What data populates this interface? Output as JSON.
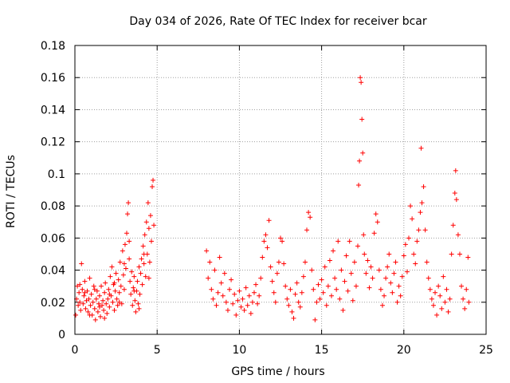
{
  "chart_data": {
    "type": "scatter",
    "title": "Day 034 of 2026, Rate Of TEC Index for receiver bcar",
    "xlabel": "GPS time / hours",
    "ylabel": "ROTI / TECUs",
    "xlim": [
      0,
      25
    ],
    "ylim": [
      0,
      0.18
    ],
    "xticks": [
      "0",
      "5",
      "10",
      "15",
      "20",
      "25"
    ],
    "yticks": [
      "0",
      "0.02",
      "0.04",
      "0.06",
      "0.08",
      "0.1",
      "0.12",
      "0.14",
      "0.16",
      "0.18"
    ],
    "grid": true,
    "marker": "+",
    "color": "#ff0000",
    "points": [
      [
        0.05,
        0.012
      ],
      [
        0.1,
        0.022
      ],
      [
        0.15,
        0.03
      ],
      [
        0.2,
        0.018
      ],
      [
        0.25,
        0.026
      ],
      [
        0.3,
        0.031
      ],
      [
        0.35,
        0.015
      ],
      [
        0.4,
        0.044
      ],
      [
        0.45,
        0.028
      ],
      [
        0.5,
        0.019
      ],
      [
        0.55,
        0.024
      ],
      [
        0.6,
        0.033
      ],
      [
        0.65,
        0.016
      ],
      [
        0.7,
        0.021
      ],
      [
        0.75,
        0.027
      ],
      [
        0.8,
        0.014
      ],
      [
        0.85,
        0.022
      ],
      [
        0.9,
        0.035
      ],
      [
        0.95,
        0.018
      ],
      [
        1.0,
        0.025
      ],
      [
        1.05,
        0.012
      ],
      [
        1.1,
        0.02
      ],
      [
        1.15,
        0.03
      ],
      [
        1.2,
        0.016
      ],
      [
        1.25,
        0.009
      ],
      [
        1.3,
        0.022
      ],
      [
        1.35,
        0.027
      ],
      [
        1.4,
        0.014
      ],
      [
        1.45,
        0.019
      ],
      [
        1.5,
        0.024
      ],
      [
        1.55,
        0.011
      ],
      [
        1.6,
        0.03
      ],
      [
        1.65,
        0.018
      ],
      [
        1.7,
        0.021
      ],
      [
        1.75,
        0.015
      ],
      [
        1.8,
        0.026
      ],
      [
        1.85,
        0.032
      ],
      [
        1.9,
        0.019
      ],
      [
        1.95,
        0.013
      ],
      [
        2.0,
        0.022
      ],
      [
        2.05,
        0.028
      ],
      [
        2.1,
        0.017
      ],
      [
        2.15,
        0.036
      ],
      [
        2.2,
        0.024
      ],
      [
        2.25,
        0.042
      ],
      [
        2.3,
        0.02
      ],
      [
        2.35,
        0.031
      ],
      [
        2.4,
        0.015
      ],
      [
        2.45,
        0.027
      ],
      [
        2.5,
        0.038
      ],
      [
        2.55,
        0.022
      ],
      [
        2.6,
        0.018
      ],
      [
        2.65,
        0.034
      ],
      [
        2.7,
        0.026
      ],
      [
        2.75,
        0.045
      ],
      [
        2.8,
        0.03
      ],
      [
        2.85,
        0.019
      ],
      [
        2.9,
        0.052
      ],
      [
        2.95,
        0.037
      ],
      [
        3.0,
        0.028
      ],
      [
        3.05,
        0.056
      ],
      [
        3.1,
        0.041
      ],
      [
        3.15,
        0.063
      ],
      [
        3.2,
        0.075
      ],
      [
        3.25,
        0.082
      ],
      [
        3.3,
        0.047
      ],
      [
        3.35,
        0.033
      ],
      [
        3.4,
        0.025
      ],
      [
        3.45,
        0.039
      ],
      [
        3.5,
        0.018
      ],
      [
        3.55,
        0.029
      ],
      [
        3.6,
        0.036
      ],
      [
        3.65,
        0.021
      ],
      [
        3.7,
        0.014
      ],
      [
        3.75,
        0.027
      ],
      [
        3.8,
        0.033
      ],
      [
        3.85,
        0.019
      ],
      [
        3.9,
        0.042
      ],
      [
        3.95,
        0.025
      ],
      [
        4.0,
        0.038
      ],
      [
        4.05,
        0.047
      ],
      [
        4.1,
        0.031
      ],
      [
        4.15,
        0.055
      ],
      [
        4.2,
        0.044
      ],
      [
        4.25,
        0.062
      ],
      [
        4.3,
        0.036
      ],
      [
        4.35,
        0.07
      ],
      [
        4.4,
        0.05
      ],
      [
        4.45,
        0.082
      ],
      [
        4.5,
        0.066
      ],
      [
        4.55,
        0.045
      ],
      [
        4.6,
        0.074
      ],
      [
        4.65,
        0.058
      ],
      [
        4.7,
        0.092
      ],
      [
        4.75,
        0.096
      ],
      [
        4.8,
        0.068
      ],
      [
        0.3,
        0.02
      ],
      [
        0.6,
        0.026
      ],
      [
        0.9,
        0.012
      ],
      [
        1.2,
        0.028
      ],
      [
        1.5,
        0.017
      ],
      [
        1.8,
        0.01
      ],
      [
        2.1,
        0.025
      ],
      [
        2.4,
        0.032
      ],
      [
        2.7,
        0.02
      ],
      [
        3.0,
        0.044
      ],
      [
        3.3,
        0.058
      ],
      [
        3.6,
        0.027
      ],
      [
        3.9,
        0.016
      ],
      [
        4.2,
        0.05
      ],
      [
        4.5,
        0.035
      ],
      [
        8.0,
        0.052
      ],
      [
        8.1,
        0.035
      ],
      [
        8.2,
        0.045
      ],
      [
        8.3,
        0.028
      ],
      [
        8.4,
        0.022
      ],
      [
        8.5,
        0.04
      ],
      [
        8.6,
        0.018
      ],
      [
        8.7,
        0.026
      ],
      [
        8.8,
        0.048
      ],
      [
        8.9,
        0.032
      ],
      [
        9.0,
        0.024
      ],
      [
        9.1,
        0.038
      ],
      [
        9.2,
        0.02
      ],
      [
        9.3,
        0.015
      ],
      [
        9.4,
        0.028
      ],
      [
        9.5,
        0.034
      ],
      [
        9.6,
        0.019
      ],
      [
        9.7,
        0.025
      ],
      [
        9.8,
        0.012
      ],
      [
        9.9,
        0.021
      ],
      [
        10.0,
        0.027
      ],
      [
        10.1,
        0.017
      ],
      [
        10.2,
        0.022
      ],
      [
        10.3,
        0.015
      ],
      [
        10.4,
        0.029
      ],
      [
        10.5,
        0.018
      ],
      [
        10.6,
        0.024
      ],
      [
        10.7,
        0.013
      ],
      [
        10.8,
        0.02
      ],
      [
        10.9,
        0.026
      ],
      [
        11.0,
        0.031
      ],
      [
        11.1,
        0.019
      ],
      [
        11.2,
        0.024
      ],
      [
        11.3,
        0.035
      ],
      [
        11.4,
        0.048
      ],
      [
        11.5,
        0.058
      ],
      [
        11.6,
        0.062
      ],
      [
        11.7,
        0.054
      ],
      [
        11.8,
        0.071
      ],
      [
        11.9,
        0.042
      ],
      [
        12.0,
        0.033
      ],
      [
        12.1,
        0.026
      ],
      [
        12.2,
        0.02
      ],
      [
        12.3,
        0.038
      ],
      [
        12.4,
        0.045
      ],
      [
        12.5,
        0.06
      ],
      [
        12.6,
        0.058
      ],
      [
        12.7,
        0.044
      ],
      [
        12.8,
        0.03
      ],
      [
        12.9,
        0.022
      ],
      [
        13.0,
        0.018
      ],
      [
        13.1,
        0.028
      ],
      [
        13.2,
        0.014
      ],
      [
        13.3,
        0.01
      ],
      [
        13.4,
        0.025
      ],
      [
        13.5,
        0.032
      ],
      [
        13.6,
        0.02
      ],
      [
        13.7,
        0.017
      ],
      [
        13.8,
        0.026
      ],
      [
        13.9,
        0.036
      ],
      [
        14.0,
        0.045
      ],
      [
        14.1,
        0.065
      ],
      [
        14.2,
        0.076
      ],
      [
        14.3,
        0.073
      ],
      [
        14.4,
        0.04
      ],
      [
        14.5,
        0.028
      ],
      [
        14.6,
        0.009
      ],
      [
        14.7,
        0.02
      ],
      [
        14.8,
        0.031
      ],
      [
        14.9,
        0.022
      ],
      [
        15.0,
        0.034
      ],
      [
        15.1,
        0.026
      ],
      [
        15.2,
        0.042
      ],
      [
        15.3,
        0.018
      ],
      [
        15.4,
        0.03
      ],
      [
        15.5,
        0.046
      ],
      [
        15.6,
        0.024
      ],
      [
        15.7,
        0.052
      ],
      [
        15.8,
        0.035
      ],
      [
        15.9,
        0.028
      ],
      [
        16.0,
        0.058
      ],
      [
        16.1,
        0.022
      ],
      [
        16.2,
        0.04
      ],
      [
        16.3,
        0.015
      ],
      [
        16.4,
        0.033
      ],
      [
        16.5,
        0.049
      ],
      [
        16.6,
        0.027
      ],
      [
        16.7,
        0.058
      ],
      [
        16.8,
        0.038
      ],
      [
        16.9,
        0.021
      ],
      [
        17.0,
        0.045
      ],
      [
        17.1,
        0.03
      ],
      [
        17.2,
        0.055
      ],
      [
        17.25,
        0.093
      ],
      [
        17.3,
        0.108
      ],
      [
        17.35,
        0.16
      ],
      [
        17.4,
        0.157
      ],
      [
        17.45,
        0.134
      ],
      [
        17.5,
        0.113
      ],
      [
        17.55,
        0.062
      ],
      [
        17.6,
        0.05
      ],
      [
        17.7,
        0.038
      ],
      [
        17.8,
        0.046
      ],
      [
        17.9,
        0.029
      ],
      [
        18.0,
        0.042
      ],
      [
        18.1,
        0.035
      ],
      [
        18.2,
        0.063
      ],
      [
        18.3,
        0.075
      ],
      [
        18.4,
        0.07
      ],
      [
        18.5,
        0.04
      ],
      [
        18.6,
        0.028
      ],
      [
        18.7,
        0.018
      ],
      [
        18.8,
        0.024
      ],
      [
        18.9,
        0.035
      ],
      [
        19.0,
        0.042
      ],
      [
        19.1,
        0.05
      ],
      [
        19.2,
        0.032
      ],
      [
        19.3,
        0.026
      ],
      [
        19.4,
        0.038
      ],
      [
        19.5,
        0.045
      ],
      [
        19.6,
        0.02
      ],
      [
        19.7,
        0.03
      ],
      [
        19.8,
        0.024
      ],
      [
        19.9,
        0.036
      ],
      [
        20.0,
        0.049
      ],
      [
        20.1,
        0.056
      ],
      [
        20.2,
        0.039
      ],
      [
        20.3,
        0.06
      ],
      [
        20.4,
        0.08
      ],
      [
        20.5,
        0.072
      ],
      [
        20.6,
        0.05
      ],
      [
        20.7,
        0.044
      ],
      [
        20.8,
        0.058
      ],
      [
        20.9,
        0.065
      ],
      [
        21.0,
        0.076
      ],
      [
        21.05,
        0.116
      ],
      [
        21.1,
        0.082
      ],
      [
        21.2,
        0.092
      ],
      [
        21.3,
        0.065
      ],
      [
        21.4,
        0.045
      ],
      [
        21.5,
        0.035
      ],
      [
        21.6,
        0.028
      ],
      [
        21.7,
        0.022
      ],
      [
        21.8,
        0.018
      ],
      [
        21.9,
        0.026
      ],
      [
        22.0,
        0.012
      ],
      [
        22.1,
        0.03
      ],
      [
        22.2,
        0.024
      ],
      [
        22.3,
        0.016
      ],
      [
        22.4,
        0.036
      ],
      [
        22.5,
        0.02
      ],
      [
        22.6,
        0.028
      ],
      [
        22.7,
        0.014
      ],
      [
        22.8,
        0.022
      ],
      [
        22.9,
        0.05
      ],
      [
        23.0,
        0.068
      ],
      [
        23.1,
        0.088
      ],
      [
        23.15,
        0.102
      ],
      [
        23.2,
        0.084
      ],
      [
        23.3,
        0.062
      ],
      [
        23.4,
        0.05
      ],
      [
        23.5,
        0.03
      ],
      [
        23.6,
        0.022
      ],
      [
        23.7,
        0.016
      ],
      [
        23.8,
        0.028
      ],
      [
        23.9,
        0.048
      ],
      [
        23.95,
        0.02
      ]
    ]
  }
}
